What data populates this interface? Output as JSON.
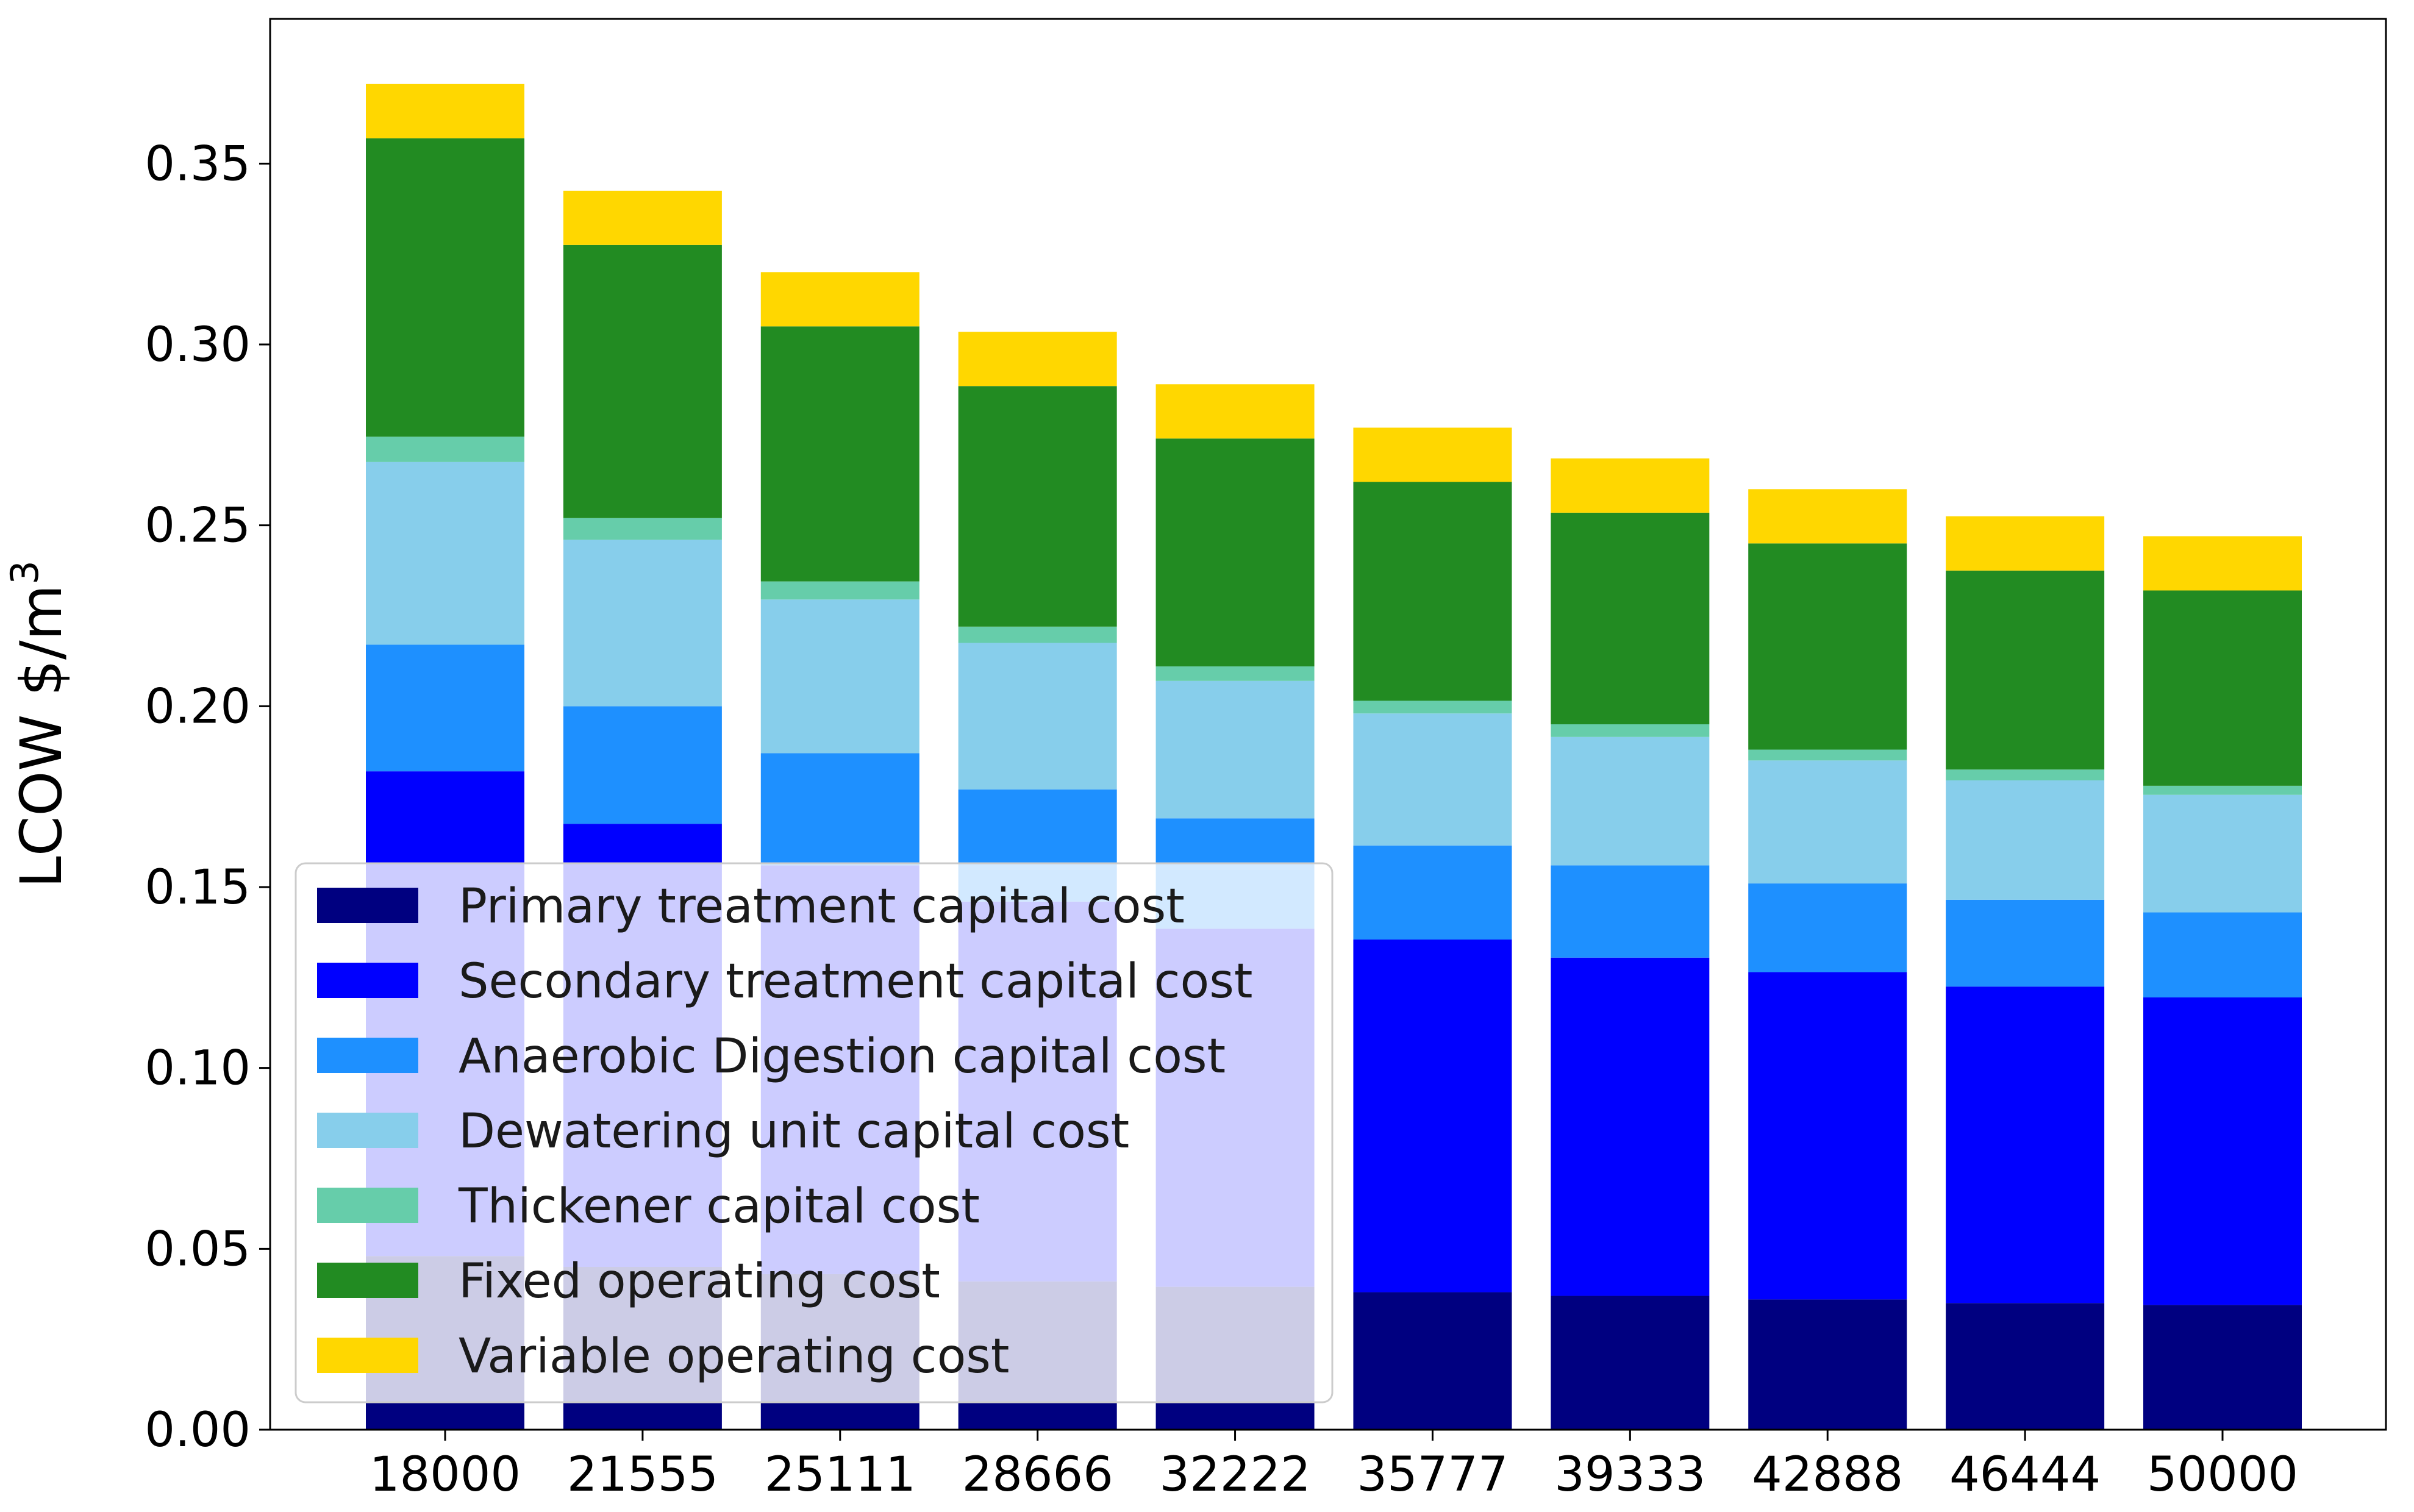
{
  "chart_data": {
    "type": "bar",
    "stacked": true,
    "title": "",
    "xlabel": "",
    "ylabel": "LCOW $/m",
    "ylabel_superscript": "3",
    "ylim": [
      0,
      0.39
    ],
    "yticks": [
      "0.00",
      "0.05",
      "0.10",
      "0.15",
      "0.20",
      "0.25",
      "0.30",
      "0.35"
    ],
    "grid": false,
    "legend_position": "lower-left",
    "categories": [
      "18000",
      "21555",
      "25111",
      "28666",
      "32222",
      "35777",
      "39333",
      "42888",
      "46444",
      "50000"
    ],
    "series": [
      {
        "name": "Primary treatment capital cost",
        "color": "#000080",
        "values": [
          0.048,
          0.045,
          0.043,
          0.041,
          0.0395,
          0.038,
          0.037,
          0.036,
          0.035,
          0.0345
        ]
      },
      {
        "name": "Secondary treatment capital cost",
        "color": "#0000ff",
        "values": [
          0.134,
          0.1225,
          0.113,
          0.105,
          0.099,
          0.0975,
          0.0935,
          0.0905,
          0.0875,
          0.085
        ]
      },
      {
        "name": "Anaerobic Digestion  capital cost",
        "color": "#1e90ff",
        "values": [
          0.035,
          0.0325,
          0.031,
          0.031,
          0.0305,
          0.026,
          0.0255,
          0.0245,
          0.024,
          0.0235
        ]
      },
      {
        "name": "Dewatering unit capital cost",
        "color": "#87ceeb",
        "values": [
          0.0505,
          0.046,
          0.0425,
          0.0405,
          0.038,
          0.0365,
          0.0355,
          0.034,
          0.033,
          0.0325
        ]
      },
      {
        "name": "Thickener capital cost",
        "color": "#66cdaa",
        "values": [
          0.007,
          0.006,
          0.005,
          0.0045,
          0.004,
          0.0035,
          0.0035,
          0.003,
          0.003,
          0.0025
        ]
      },
      {
        "name": "Fixed operating cost",
        "color": "#228b22",
        "values": [
          0.0825,
          0.0755,
          0.0705,
          0.0665,
          0.063,
          0.0605,
          0.0585,
          0.057,
          0.055,
          0.054
        ]
      },
      {
        "name": "Variable operating cost",
        "color": "#ffd700",
        "values": [
          0.015,
          0.015,
          0.015,
          0.015,
          0.015,
          0.015,
          0.015,
          0.015,
          0.015,
          0.015
        ]
      }
    ]
  }
}
